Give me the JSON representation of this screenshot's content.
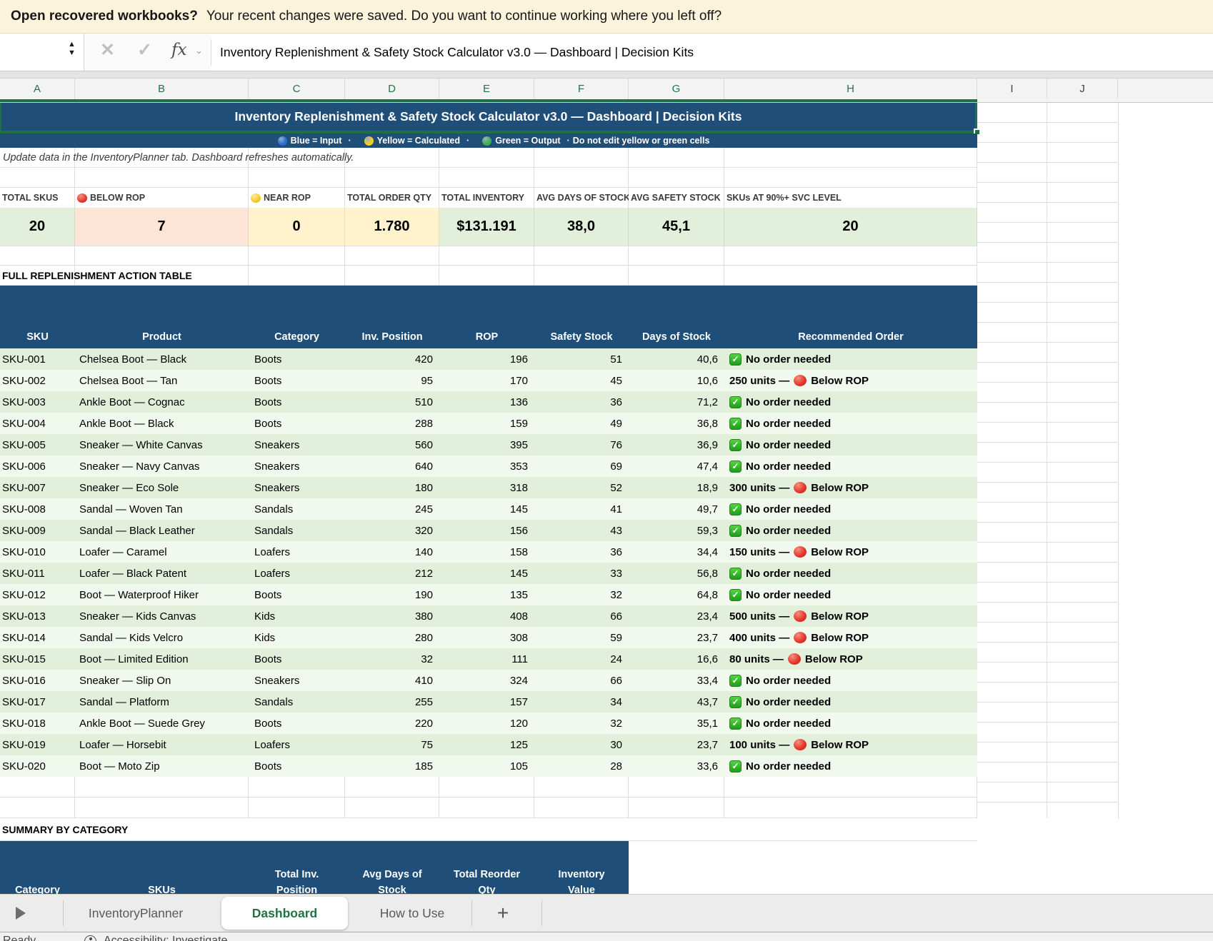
{
  "palette": {
    "header_blue": "#1F4E79",
    "selection_green": "#1E7145",
    "tab_green": "#217346",
    "green_fill": "#E2EFDA",
    "red_fill": "#FCE4D6",
    "yellow_fill": "#FFF2CC",
    "band_dark": "#E1EFDB",
    "band_light": "#F1F8ED",
    "legend_blue_dot": "#2B6BD7",
    "legend_yellow_dot": "#F5CE1F",
    "legend_green_dot": "#3FAE4C"
  },
  "notification": {
    "title": "Open recovered workbooks?",
    "message": "Your recent changes were saved. Do you want to continue working where you left off?"
  },
  "formula_bar": {
    "fx_label": "fx",
    "cancel_glyph": "✕",
    "enter_glyph": "✓",
    "value": "Inventory Replenishment & Safety Stock Calculator v3.0 — Dashboard  |  Decision Kits"
  },
  "columns": {
    "labels": [
      "A",
      "B",
      "C",
      "D",
      "E",
      "F",
      "G",
      "H",
      "I",
      "J"
    ],
    "selected": [
      "A",
      "B",
      "C",
      "D",
      "E",
      "F",
      "G",
      "H"
    ]
  },
  "sheet": {
    "title": "Inventory Replenishment & Safety Stock Calculator v3.0 — Dashboard  |  Decision Kits",
    "legend": {
      "items": [
        {
          "color": "#2B6BD7",
          "label": "Blue = Input"
        },
        {
          "color": "#F5CE1F",
          "label": "Yellow = Calculated"
        },
        {
          "color": "#3FAE4C",
          "label": "Green = Output"
        }
      ],
      "separator": "·",
      "warning": "Do not edit yellow or green cells"
    },
    "note": "Update data in the InventoryPlanner tab. Dashboard refreshes automatically.",
    "kpis": [
      {
        "label": "TOTAL SKUS",
        "value": "20",
        "fill": "green"
      },
      {
        "label": "BELOW ROP",
        "dot": "red",
        "value": "7",
        "fill": "red"
      },
      {
        "label": "NEAR ROP",
        "dot": "yellow",
        "value": "0",
        "fill": "yellow"
      },
      {
        "label": "TOTAL ORDER QTY",
        "value": "1.780",
        "fill": "yellow"
      },
      {
        "label": "TOTAL INVENTORY",
        "value": "$131.191",
        "fill": "green"
      },
      {
        "label": "AVG DAYS OF STOCK",
        "value": "38,0",
        "fill": "green"
      },
      {
        "label": "AVG SAFETY STOCK",
        "value": "45,1",
        "fill": "green"
      },
      {
        "label": "SKUs AT 90%+ SVC LEVEL",
        "value": "20",
        "fill": "green"
      }
    ],
    "action_table": {
      "section_title": "FULL REPLENISHMENT ACTION TABLE",
      "headers": [
        "SKU",
        "Product",
        "Category",
        "Inv. Position",
        "ROP",
        "Safety Stock",
        "Days of Stock",
        "Recommended Order"
      ],
      "rows": [
        {
          "sku": "SKU-001",
          "product": "Chelsea Boot — Black",
          "category": "Boots",
          "inv_position": "420",
          "rop": "196",
          "safety_stock": "51",
          "days_of_stock": "40,6",
          "order": {
            "status": "ok",
            "text": "No order needed"
          }
        },
        {
          "sku": "SKU-002",
          "product": "Chelsea Boot — Tan",
          "category": "Boots",
          "inv_position": "95",
          "rop": "170",
          "safety_stock": "45",
          "days_of_stock": "10,6",
          "order": {
            "status": "below_rop",
            "qty_text": "250 units —",
            "label": "Below ROP"
          }
        },
        {
          "sku": "SKU-003",
          "product": "Ankle Boot — Cognac",
          "category": "Boots",
          "inv_position": "510",
          "rop": "136",
          "safety_stock": "36",
          "days_of_stock": "71,2",
          "order": {
            "status": "ok",
            "text": "No order needed"
          }
        },
        {
          "sku": "SKU-004",
          "product": "Ankle Boot — Black",
          "category": "Boots",
          "inv_position": "288",
          "rop": "159",
          "safety_stock": "49",
          "days_of_stock": "36,8",
          "order": {
            "status": "ok",
            "text": "No order needed"
          }
        },
        {
          "sku": "SKU-005",
          "product": "Sneaker — White Canvas",
          "category": "Sneakers",
          "inv_position": "560",
          "rop": "395",
          "safety_stock": "76",
          "days_of_stock": "36,9",
          "order": {
            "status": "ok",
            "text": "No order needed"
          }
        },
        {
          "sku": "SKU-006",
          "product": "Sneaker — Navy Canvas",
          "category": "Sneakers",
          "inv_position": "640",
          "rop": "353",
          "safety_stock": "69",
          "days_of_stock": "47,4",
          "order": {
            "status": "ok",
            "text": "No order needed"
          }
        },
        {
          "sku": "SKU-007",
          "product": "Sneaker — Eco Sole",
          "category": "Sneakers",
          "inv_position": "180",
          "rop": "318",
          "safety_stock": "52",
          "days_of_stock": "18,9",
          "order": {
            "status": "below_rop",
            "qty_text": "300 units —",
            "label": "Below ROP"
          }
        },
        {
          "sku": "SKU-008",
          "product": "Sandal — Woven Tan",
          "category": "Sandals",
          "inv_position": "245",
          "rop": "145",
          "safety_stock": "41",
          "days_of_stock": "49,7",
          "order": {
            "status": "ok",
            "text": "No order needed"
          }
        },
        {
          "sku": "SKU-009",
          "product": "Sandal — Black Leather",
          "category": "Sandals",
          "inv_position": "320",
          "rop": "156",
          "safety_stock": "43",
          "days_of_stock": "59,3",
          "order": {
            "status": "ok",
            "text": "No order needed"
          }
        },
        {
          "sku": "SKU-010",
          "product": "Loafer — Caramel",
          "category": "Loafers",
          "inv_position": "140",
          "rop": "158",
          "safety_stock": "36",
          "days_of_stock": "34,4",
          "order": {
            "status": "below_rop",
            "qty_text": "150 units —",
            "label": "Below ROP"
          }
        },
        {
          "sku": "SKU-011",
          "product": "Loafer — Black Patent",
          "category": "Loafers",
          "inv_position": "212",
          "rop": "145",
          "safety_stock": "33",
          "days_of_stock": "56,8",
          "order": {
            "status": "ok",
            "text": "No order needed"
          }
        },
        {
          "sku": "SKU-012",
          "product": "Boot — Waterproof Hiker",
          "category": "Boots",
          "inv_position": "190",
          "rop": "135",
          "safety_stock": "32",
          "days_of_stock": "64,8",
          "order": {
            "status": "ok",
            "text": "No order needed"
          }
        },
        {
          "sku": "SKU-013",
          "product": "Sneaker — Kids Canvas",
          "category": "Kids",
          "inv_position": "380",
          "rop": "408",
          "safety_stock": "66",
          "days_of_stock": "23,4",
          "order": {
            "status": "below_rop",
            "qty_text": "500 units —",
            "label": "Below ROP"
          }
        },
        {
          "sku": "SKU-014",
          "product": "Sandal — Kids Velcro",
          "category": "Kids",
          "inv_position": "280",
          "rop": "308",
          "safety_stock": "59",
          "days_of_stock": "23,7",
          "order": {
            "status": "below_rop",
            "qty_text": "400 units —",
            "label": "Below ROP"
          }
        },
        {
          "sku": "SKU-015",
          "product": "Boot — Limited Edition",
          "category": "Boots",
          "inv_position": "32",
          "rop": "111",
          "safety_stock": "24",
          "days_of_stock": "16,6",
          "order": {
            "status": "below_rop",
            "qty_text": "80 units —",
            "label": "Below ROP"
          }
        },
        {
          "sku": "SKU-016",
          "product": "Sneaker — Slip On",
          "category": "Sneakers",
          "inv_position": "410",
          "rop": "324",
          "safety_stock": "66",
          "days_of_stock": "33,4",
          "order": {
            "status": "ok",
            "text": "No order needed"
          }
        },
        {
          "sku": "SKU-017",
          "product": "Sandal — Platform",
          "category": "Sandals",
          "inv_position": "255",
          "rop": "157",
          "safety_stock": "34",
          "days_of_stock": "43,7",
          "order": {
            "status": "ok",
            "text": "No order needed"
          }
        },
        {
          "sku": "SKU-018",
          "product": "Ankle Boot — Suede Grey",
          "category": "Boots",
          "inv_position": "220",
          "rop": "120",
          "safety_stock": "32",
          "days_of_stock": "35,1",
          "order": {
            "status": "ok",
            "text": "No order needed"
          }
        },
        {
          "sku": "SKU-019",
          "product": "Loafer — Horsebit",
          "category": "Loafers",
          "inv_position": "75",
          "rop": "125",
          "safety_stock": "30",
          "days_of_stock": "23,7",
          "order": {
            "status": "below_rop",
            "qty_text": "100 units —",
            "label": "Below ROP"
          }
        },
        {
          "sku": "SKU-020",
          "product": "Boot — Moto Zip",
          "category": "Boots",
          "inv_position": "185",
          "rop": "105",
          "safety_stock": "28",
          "days_of_stock": "33,6",
          "order": {
            "status": "ok",
            "text": "No order needed"
          }
        }
      ]
    },
    "summary": {
      "section_title": "SUMMARY BY CATEGORY",
      "headers": [
        {
          "line1": "",
          "line2": "Category"
        },
        {
          "line1": "",
          "line2": "SKUs"
        },
        {
          "line1": "Total Inv.",
          "line2": "Position"
        },
        {
          "line1": "Avg Days of",
          "line2": "Stock"
        },
        {
          "line1": "Total Reorder",
          "line2": "Qty"
        },
        {
          "line1": "Inventory",
          "line2": "Value"
        }
      ]
    }
  },
  "tabs": {
    "items": [
      {
        "label": "InventoryPlanner",
        "active": false
      },
      {
        "label": "Dashboard",
        "active": true
      },
      {
        "label": "How to Use",
        "active": false
      }
    ],
    "add_label": "+"
  },
  "status_bar": {
    "ready": "Ready",
    "accessibility": "Accessibility: Investigate"
  }
}
